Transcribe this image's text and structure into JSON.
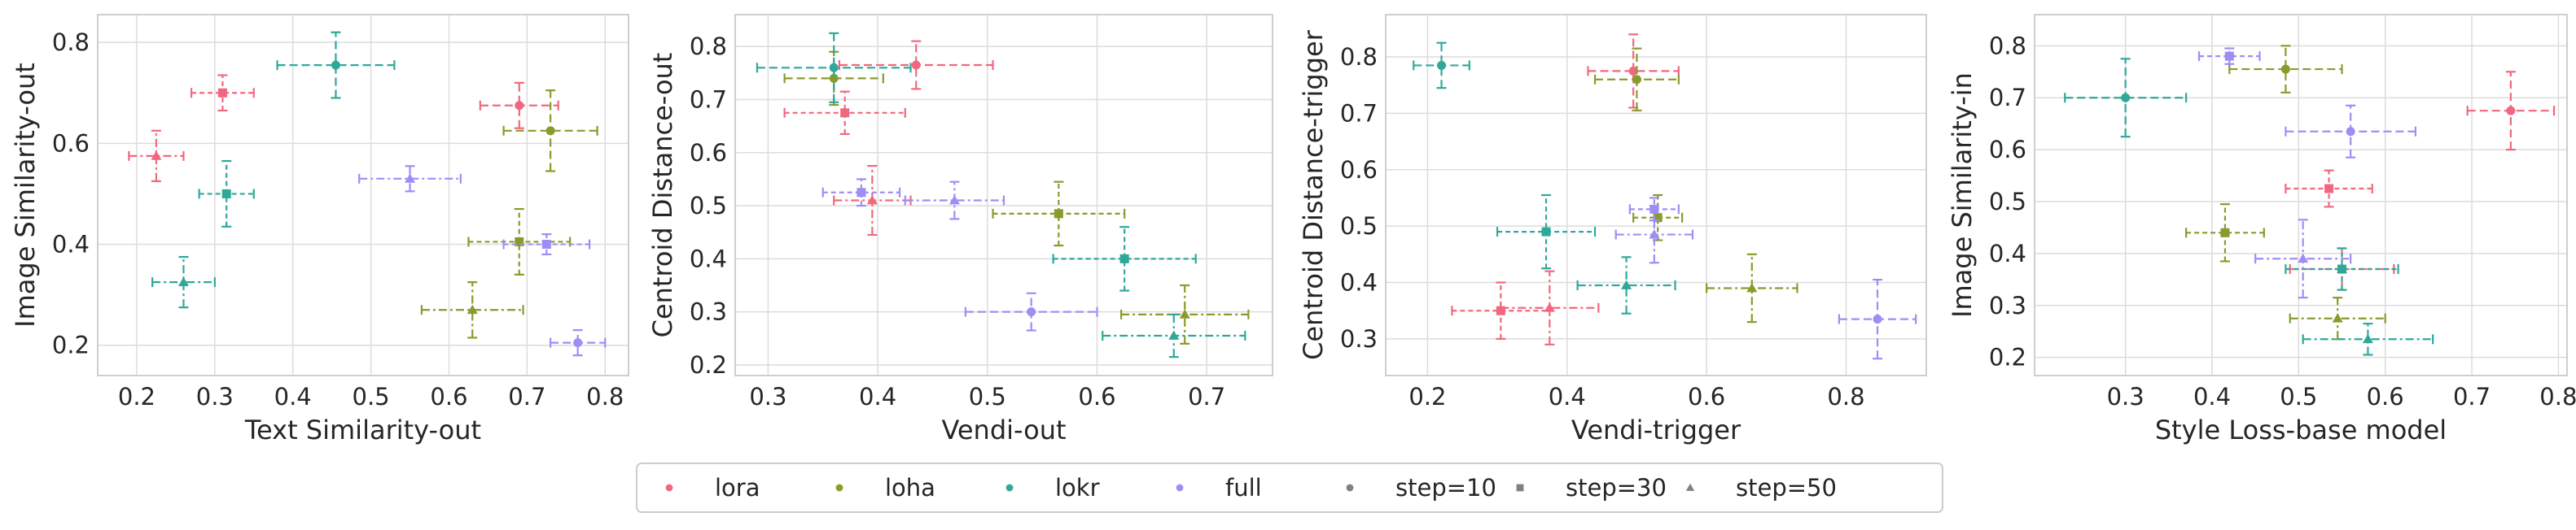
{
  "colors": {
    "lora": "#f0687f",
    "loha": "#8a9a2b",
    "lokr": "#2fa89a",
    "full": "#a08cf5",
    "grid": "#dcdcdc",
    "frame": "#cfcfcf",
    "legend_marker": "#808080"
  },
  "legend": {
    "methods": [
      "lora",
      "loha",
      "lokr",
      "full"
    ],
    "steps": [
      {
        "label": "step=10",
        "marker": "circle"
      },
      {
        "label": "step=30",
        "marker": "square"
      },
      {
        "label": "step=50",
        "marker": "triangle"
      }
    ]
  },
  "chart_data": [
    {
      "type": "scatter",
      "xlabel": "Text Similarity-out",
      "ylabel": "Image Similarity-out",
      "xlim": [
        0.15,
        0.83
      ],
      "ylim": [
        0.14,
        0.855
      ],
      "xticks": [
        "0.2",
        "0.3",
        "0.4",
        "0.5",
        "0.6",
        "0.7",
        "0.8"
      ],
      "yticks": [
        "0.2",
        "0.4",
        "0.6",
        "0.8"
      ],
      "grid": true,
      "points": [
        {
          "method": "lora",
          "step": 10,
          "x": 0.69,
          "xerr": 0.05,
          "y": 0.675,
          "yerr": 0.045
        },
        {
          "method": "lora",
          "step": 30,
          "x": 0.31,
          "xerr": 0.04,
          "y": 0.7,
          "yerr": 0.035
        },
        {
          "method": "lora",
          "step": 50,
          "x": 0.225,
          "xerr": 0.035,
          "y": 0.575,
          "yerr": 0.05
        },
        {
          "method": "loha",
          "step": 10,
          "x": 0.73,
          "xerr": 0.06,
          "y": 0.625,
          "yerr": 0.08
        },
        {
          "method": "loha",
          "step": 30,
          "x": 0.69,
          "xerr": 0.065,
          "y": 0.405,
          "yerr": 0.065
        },
        {
          "method": "loha",
          "step": 50,
          "x": 0.63,
          "xerr": 0.065,
          "y": 0.27,
          "yerr": 0.055
        },
        {
          "method": "lokr",
          "step": 10,
          "x": 0.455,
          "xerr": 0.075,
          "y": 0.755,
          "yerr": 0.065
        },
        {
          "method": "lokr",
          "step": 30,
          "x": 0.315,
          "xerr": 0.035,
          "y": 0.5,
          "yerr": 0.065
        },
        {
          "method": "lokr",
          "step": 50,
          "x": 0.26,
          "xerr": 0.04,
          "y": 0.325,
          "yerr": 0.05
        },
        {
          "method": "full",
          "step": 10,
          "x": 0.765,
          "xerr": 0.035,
          "y": 0.205,
          "yerr": 0.025
        },
        {
          "method": "full",
          "step": 30,
          "x": 0.725,
          "xerr": 0.055,
          "y": 0.4,
          "yerr": 0.02
        },
        {
          "method": "full",
          "step": 50,
          "x": 0.55,
          "xerr": 0.065,
          "y": 0.53,
          "yerr": 0.025
        }
      ]
    },
    {
      "type": "scatter",
      "xlabel": "Vendi-out",
      "ylabel": "Centroid Distance-out",
      "xlim": [
        0.27,
        0.76
      ],
      "ylim": [
        0.18,
        0.86
      ],
      "xticks": [
        "0.3",
        "0.4",
        "0.5",
        "0.6",
        "0.7"
      ],
      "yticks": [
        "0.2",
        "0.3",
        "0.4",
        "0.5",
        "0.6",
        "0.7",
        "0.8"
      ],
      "grid": true,
      "points": [
        {
          "method": "lora",
          "step": 10,
          "x": 0.435,
          "xerr": 0.07,
          "y": 0.765,
          "yerr": 0.045
        },
        {
          "method": "lora",
          "step": 30,
          "x": 0.37,
          "xerr": 0.055,
          "y": 0.675,
          "yerr": 0.04
        },
        {
          "method": "lora",
          "step": 50,
          "x": 0.395,
          "xerr": 0.035,
          "y": 0.51,
          "yerr": 0.065
        },
        {
          "method": "loha",
          "step": 10,
          "x": 0.36,
          "xerr": 0.045,
          "y": 0.74,
          "yerr": 0.05
        },
        {
          "method": "loha",
          "step": 30,
          "x": 0.565,
          "xerr": 0.06,
          "y": 0.485,
          "yerr": 0.06
        },
        {
          "method": "loha",
          "step": 50,
          "x": 0.68,
          "xerr": 0.058,
          "y": 0.295,
          "yerr": 0.055
        },
        {
          "method": "lokr",
          "step": 10,
          "x": 0.36,
          "xerr": 0.07,
          "y": 0.76,
          "yerr": 0.065
        },
        {
          "method": "lokr",
          "step": 30,
          "x": 0.625,
          "xerr": 0.065,
          "y": 0.4,
          "yerr": 0.06
        },
        {
          "method": "lokr",
          "step": 50,
          "x": 0.67,
          "xerr": 0.065,
          "y": 0.255,
          "yerr": 0.04
        },
        {
          "method": "full",
          "step": 10,
          "x": 0.54,
          "xerr": 0.06,
          "y": 0.3,
          "yerr": 0.035
        },
        {
          "method": "full",
          "step": 30,
          "x": 0.385,
          "xerr": 0.035,
          "y": 0.525,
          "yerr": 0.025
        },
        {
          "method": "full",
          "step": 50,
          "x": 0.47,
          "xerr": 0.045,
          "y": 0.51,
          "yerr": 0.035
        }
      ]
    },
    {
      "type": "scatter",
      "xlabel": "Vendi-trigger",
      "ylabel": "Centroid Distance-trigger",
      "xlim": [
        0.14,
        0.915
      ],
      "ylim": [
        0.235,
        0.875
      ],
      "xticks": [
        "0.2",
        "0.4",
        "0.6",
        "0.8"
      ],
      "yticks": [
        "0.3",
        "0.4",
        "0.5",
        "0.6",
        "0.7",
        "0.8"
      ],
      "grid": true,
      "points": [
        {
          "method": "lora",
          "step": 10,
          "x": 0.495,
          "xerr": 0.065,
          "y": 0.775,
          "yerr": 0.065
        },
        {
          "method": "lora",
          "step": 30,
          "x": 0.305,
          "xerr": 0.07,
          "y": 0.35,
          "yerr": 0.05
        },
        {
          "method": "lora",
          "step": 50,
          "x": 0.375,
          "xerr": 0.07,
          "y": 0.355,
          "yerr": 0.065
        },
        {
          "method": "loha",
          "step": 10,
          "x": 0.5,
          "xerr": 0.06,
          "y": 0.76,
          "yerr": 0.055
        },
        {
          "method": "loha",
          "step": 30,
          "x": 0.53,
          "xerr": 0.035,
          "y": 0.515,
          "yerr": 0.04
        },
        {
          "method": "loha",
          "step": 50,
          "x": 0.665,
          "xerr": 0.065,
          "y": 0.39,
          "yerr": 0.06
        },
        {
          "method": "lokr",
          "step": 10,
          "x": 0.22,
          "xerr": 0.04,
          "y": 0.785,
          "yerr": 0.04
        },
        {
          "method": "lokr",
          "step": 30,
          "x": 0.37,
          "xerr": 0.07,
          "y": 0.49,
          "yerr": 0.065
        },
        {
          "method": "lokr",
          "step": 50,
          "x": 0.485,
          "xerr": 0.07,
          "y": 0.395,
          "yerr": 0.05
        },
        {
          "method": "full",
          "step": 10,
          "x": 0.845,
          "xerr": 0.055,
          "y": 0.335,
          "yerr": 0.07
        },
        {
          "method": "full",
          "step": 30,
          "x": 0.525,
          "xerr": 0.035,
          "y": 0.53,
          "yerr": 0.02
        },
        {
          "method": "full",
          "step": 50,
          "x": 0.525,
          "xerr": 0.055,
          "y": 0.485,
          "yerr": 0.05
        }
      ]
    },
    {
      "type": "scatter",
      "xlabel": "Style Loss-base model",
      "ylabel": "Image Similarity-in",
      "xlim": [
        0.195,
        0.81
      ],
      "ylim": [
        0.165,
        0.86
      ],
      "xticks": [
        "0.3",
        "0.4",
        "0.5",
        "0.6",
        "0.7",
        "0.8"
      ],
      "yticks": [
        "0.2",
        "0.3",
        "0.4",
        "0.5",
        "0.6",
        "0.7",
        "0.8"
      ],
      "grid": true,
      "points": [
        {
          "method": "lora",
          "step": 10,
          "x": 0.745,
          "xerr": 0.05,
          "y": 0.675,
          "yerr": 0.075
        },
        {
          "method": "lora",
          "step": 30,
          "x": 0.535,
          "xerr": 0.05,
          "y": 0.525,
          "yerr": 0.035
        },
        {
          "method": "lora",
          "step": 50,
          "x": 0.55,
          "xerr": 0.06,
          "y": 0.37,
          "yerr": 0.04
        },
        {
          "method": "loha",
          "step": 10,
          "x": 0.485,
          "xerr": 0.065,
          "y": 0.755,
          "yerr": 0.045
        },
        {
          "method": "loha",
          "step": 30,
          "x": 0.415,
          "xerr": 0.045,
          "y": 0.44,
          "yerr": 0.055
        },
        {
          "method": "loha",
          "step": 50,
          "x": 0.545,
          "xerr": 0.055,
          "y": 0.275,
          "yerr": 0.04
        },
        {
          "method": "lokr",
          "step": 10,
          "x": 0.3,
          "xerr": 0.07,
          "y": 0.7,
          "yerr": 0.075
        },
        {
          "method": "lokr",
          "step": 30,
          "x": 0.55,
          "xerr": 0.065,
          "y": 0.37,
          "yerr": 0.04
        },
        {
          "method": "lokr",
          "step": 50,
          "x": 0.58,
          "xerr": 0.075,
          "y": 0.235,
          "yerr": 0.03
        },
        {
          "method": "full",
          "step": 10,
          "x": 0.56,
          "xerr": 0.075,
          "y": 0.635,
          "yerr": 0.05
        },
        {
          "method": "full",
          "step": 30,
          "x": 0.42,
          "xerr": 0.035,
          "y": 0.78,
          "yerr": 0.015
        },
        {
          "method": "full",
          "step": 50,
          "x": 0.505,
          "xerr": 0.055,
          "y": 0.39,
          "yerr": 0.075
        }
      ]
    }
  ]
}
